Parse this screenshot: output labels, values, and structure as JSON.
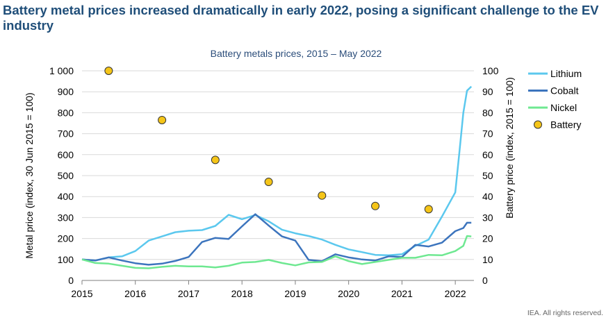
{
  "headline": "Battery metal prices increased dramatically in early 2022, posing a significant challenge to the EV industry",
  "footer": "IEA. All rights reserved.",
  "colors": {
    "lithium": "#5bc8ee",
    "cobalt": "#3c74bd",
    "nickel": "#6ee891",
    "battery": "#f5c518",
    "headline": "#1f4e79"
  },
  "chart_data": {
    "type": "line",
    "title": "Battery metals prices, 2015 – May 2022",
    "ylabel": "Metal price (index, 30 Jun 2015 = 100)",
    "y2label": "Battery price (index, 2015 = 100)",
    "xlim": [
      2015,
      2022.35
    ],
    "ylim": [
      0,
      1000
    ],
    "y2lim": [
      0,
      100
    ],
    "xticks": [
      "2015",
      "2016",
      "2017",
      "2018",
      "2019",
      "2020",
      "2021",
      "2022"
    ],
    "yticks": [
      "0",
      "100",
      "200",
      "300",
      "400",
      "500",
      "600",
      "700",
      "800",
      "900",
      "1 000"
    ],
    "y2ticks": [
      "0",
      "10",
      "20",
      "30",
      "40",
      "50",
      "60",
      "70",
      "80",
      "90",
      "100"
    ],
    "grid": "horizontal",
    "legend_position": "right",
    "series": [
      {
        "name": "Lithium",
        "kind": "line",
        "axis": "left",
        "points": [
          [
            2015,
            100
          ],
          [
            2015.25,
            95
          ],
          [
            2015.5,
            110
          ],
          [
            2015.75,
            115
          ],
          [
            2016,
            140
          ],
          [
            2016.25,
            190
          ],
          [
            2016.5,
            210
          ],
          [
            2016.75,
            230
          ],
          [
            2017,
            237
          ],
          [
            2017.25,
            240
          ],
          [
            2017.5,
            260
          ],
          [
            2017.75,
            313
          ],
          [
            2018,
            292
          ],
          [
            2018.25,
            312
          ],
          [
            2018.5,
            282
          ],
          [
            2018.75,
            242
          ],
          [
            2019,
            225
          ],
          [
            2019.25,
            212
          ],
          [
            2019.5,
            195
          ],
          [
            2019.75,
            170
          ],
          [
            2020,
            148
          ],
          [
            2020.25,
            135
          ],
          [
            2020.5,
            122
          ],
          [
            2020.75,
            120
          ],
          [
            2021,
            125
          ],
          [
            2021.25,
            165
          ],
          [
            2021.5,
            195
          ],
          [
            2021.75,
            305
          ],
          [
            2022,
            420
          ],
          [
            2022.08,
            620
          ],
          [
            2022.15,
            800
          ],
          [
            2022.22,
            905
          ],
          [
            2022.3,
            925
          ]
        ]
      },
      {
        "name": "Cobalt",
        "kind": "line",
        "axis": "left",
        "points": [
          [
            2015,
            100
          ],
          [
            2015.25,
            95
          ],
          [
            2015.5,
            110
          ],
          [
            2015.75,
            95
          ],
          [
            2016,
            82
          ],
          [
            2016.25,
            75
          ],
          [
            2016.5,
            80
          ],
          [
            2016.75,
            93
          ],
          [
            2017,
            112
          ],
          [
            2017.25,
            183
          ],
          [
            2017.5,
            203
          ],
          [
            2017.75,
            198
          ],
          [
            2018,
            258
          ],
          [
            2018.25,
            316
          ],
          [
            2018.5,
            262
          ],
          [
            2018.75,
            210
          ],
          [
            2019,
            190
          ],
          [
            2019.25,
            98
          ],
          [
            2019.5,
            92
          ],
          [
            2019.75,
            125
          ],
          [
            2020,
            110
          ],
          [
            2020.25,
            100
          ],
          [
            2020.5,
            95
          ],
          [
            2020.75,
            115
          ],
          [
            2021,
            112
          ],
          [
            2021.25,
            170
          ],
          [
            2021.5,
            162
          ],
          [
            2021.75,
            180
          ],
          [
            2022,
            235
          ],
          [
            2022.15,
            250
          ],
          [
            2022.22,
            275
          ],
          [
            2022.3,
            275
          ]
        ]
      },
      {
        "name": "Nickel",
        "kind": "line",
        "axis": "left",
        "points": [
          [
            2015,
            100
          ],
          [
            2015.25,
            83
          ],
          [
            2015.5,
            80
          ],
          [
            2015.75,
            70
          ],
          [
            2016,
            60
          ],
          [
            2016.25,
            58
          ],
          [
            2016.5,
            65
          ],
          [
            2016.75,
            70
          ],
          [
            2017,
            67
          ],
          [
            2017.25,
            67
          ],
          [
            2017.5,
            62
          ],
          [
            2017.75,
            70
          ],
          [
            2018,
            85
          ],
          [
            2018.25,
            88
          ],
          [
            2018.5,
            98
          ],
          [
            2018.75,
            83
          ],
          [
            2019,
            72
          ],
          [
            2019.25,
            86
          ],
          [
            2019.5,
            88
          ],
          [
            2019.75,
            115
          ],
          [
            2020,
            92
          ],
          [
            2020.25,
            78
          ],
          [
            2020.5,
            88
          ],
          [
            2020.75,
            98
          ],
          [
            2021,
            108
          ],
          [
            2021.25,
            108
          ],
          [
            2021.5,
            122
          ],
          [
            2021.75,
            120
          ],
          [
            2022,
            140
          ],
          [
            2022.15,
            165
          ],
          [
            2022.22,
            212
          ],
          [
            2022.3,
            210
          ]
        ]
      },
      {
        "name": "Battery",
        "kind": "scatter",
        "axis": "right",
        "points": [
          [
            2015.5,
            100
          ],
          [
            2016.5,
            76.5
          ],
          [
            2017.5,
            57.5
          ],
          [
            2018.5,
            47
          ],
          [
            2019.5,
            40.5
          ],
          [
            2020.5,
            35.5
          ],
          [
            2021.5,
            34
          ]
        ]
      }
    ]
  }
}
